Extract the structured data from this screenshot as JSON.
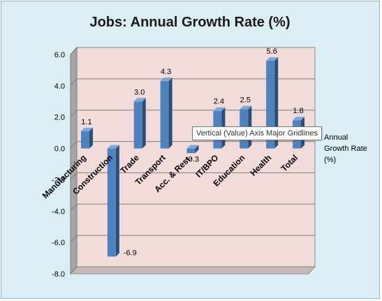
{
  "chart_data": {
    "type": "bar",
    "title": "Jobs: Annual Growth Rate (%)",
    "categories": [
      "Manufacturing",
      "Construction",
      "Trade",
      "Transport",
      "Acc. & Rest.",
      "IT/BPO",
      "Education",
      "Health",
      "Total"
    ],
    "series": [
      {
        "name": "Annual Growth Rate (%)",
        "values": [
          1.1,
          -6.9,
          3.0,
          4.3,
          -0.3,
          2.4,
          2.5,
          5.6,
          1.8
        ],
        "labels": [
          "1.1",
          "-6.9",
          "3.0",
          "4.3",
          "-0.3",
          "2.4",
          "2.5",
          "5.6",
          "1.8"
        ]
      }
    ],
    "ylim": [
      -8,
      6
    ],
    "yticks": [
      "6.0",
      "4.0",
      "2.0",
      "0.0",
      "-2.0",
      "-4.0",
      "-6.0",
      "-8.0"
    ],
    "xlabel": "",
    "ylabel": "",
    "legend": [
      "Annual",
      "Growth Rate",
      "(%)"
    ],
    "legend_position": "right",
    "grid": true,
    "style": "3d-clustered-column",
    "colors": {
      "bar": "#4f81bd",
      "bar_dark": "#2c4d75",
      "bar_light": "#7ea6d8",
      "plot_back": "#f2dcdb",
      "side_wall": "#a6a6a6",
      "chart_back": "#dbeef4",
      "gridline": "#7f7f7f"
    }
  },
  "tooltip": {
    "text": "Vertical (Value) Axis Major Gridlines"
  }
}
